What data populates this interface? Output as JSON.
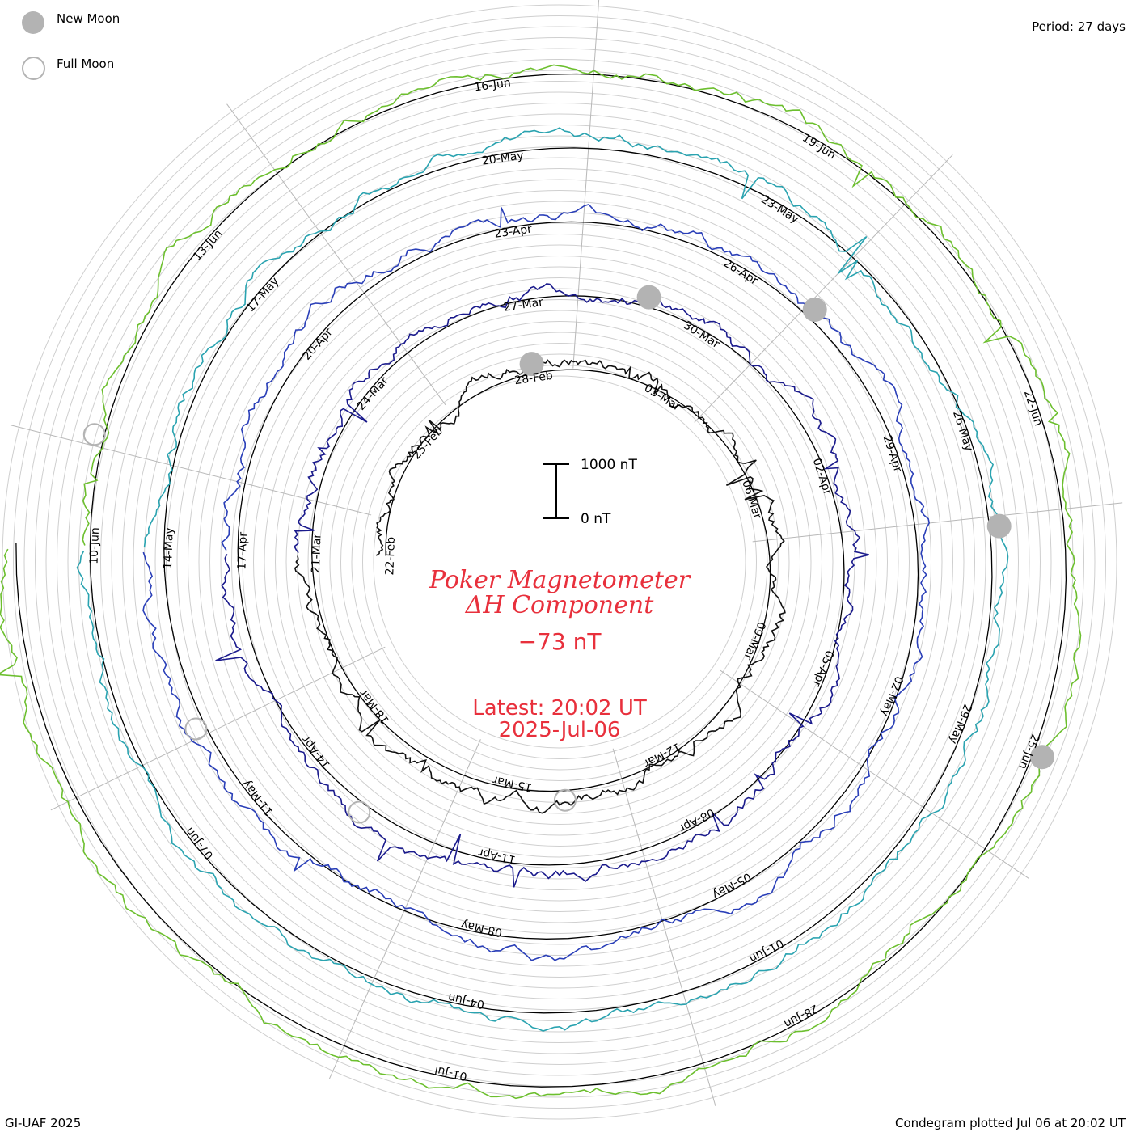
{
  "legend": {
    "new_moon_label": "New Moon",
    "full_moon_label": "Full Moon",
    "new_moon_color": "#b3b3b3",
    "full_moon_color": "#b3b3b3"
  },
  "period_label": "Period: 27 days",
  "footer": {
    "credit": "GI-UAF 2025",
    "plotted": "Condegram plotted Jul 06 at 20:02 UT"
  },
  "center": {
    "title_line1": "Poker Magnetometer",
    "title_line2": "ΔH Component",
    "current_value": "−73 nT",
    "latest_line1": "Latest: 20:02 UT",
    "latest_line2": "2025-Jul-06",
    "scale_top_label": "1000 nT",
    "scale_bottom_label": "0 nT",
    "accent_color": "#e8303c"
  },
  "chart_data": {
    "type": "line",
    "title": "Poker Magnetometer ΔH Component",
    "chart_form": "condegram spiral (one revolution per 27 days)",
    "period_days": 27,
    "scale_bar_nT": [
      0,
      1000
    ],
    "current_value_nT": -73,
    "date_labels": [
      "22-Feb",
      "25-Feb",
      "28-Feb",
      "03-Mar",
      "06-Mar",
      "09-Mar",
      "12-Mar",
      "15-Mar",
      "18-Mar",
      "21-Mar",
      "24-Mar",
      "27-Mar",
      "30-Mar",
      "02-Apr",
      "05-Apr",
      "08-Apr",
      "11-Apr",
      "14-Apr",
      "17-Apr",
      "20-Apr",
      "23-Apr",
      "26-Apr",
      "29-Apr",
      "02-May",
      "05-May",
      "08-May",
      "11-May",
      "14-May",
      "17-May",
      "20-May",
      "23-May",
      "26-May",
      "29-May",
      "01-Jun",
      "04-Jun",
      "07-Jun",
      "10-Jun",
      "13-Jun",
      "16-Jun",
      "19-Jun",
      "22-Jun",
      "25-Jun",
      "28-Jun",
      "01-Jul"
    ],
    "series_colors": [
      "#111111",
      "#1a1a8c",
      "#2a3fb8",
      "#2aa3b0",
      "#6cbf2e",
      "#b59a1a",
      "#c08020",
      "#c01010"
    ],
    "new_moon_markers": [
      {
        "date": "28-Feb"
      },
      {
        "date": "29-Mar"
      },
      {
        "date": "27-Apr"
      },
      {
        "date": "27-May"
      },
      {
        "date": "25-Jun"
      }
    ],
    "full_moon_markers": [
      {
        "date": "14-Mar"
      },
      {
        "date": "13-Apr"
      },
      {
        "date": "12-May"
      },
      {
        "date": "11-Jun"
      }
    ],
    "ylabel": "ΔH (nT)"
  }
}
